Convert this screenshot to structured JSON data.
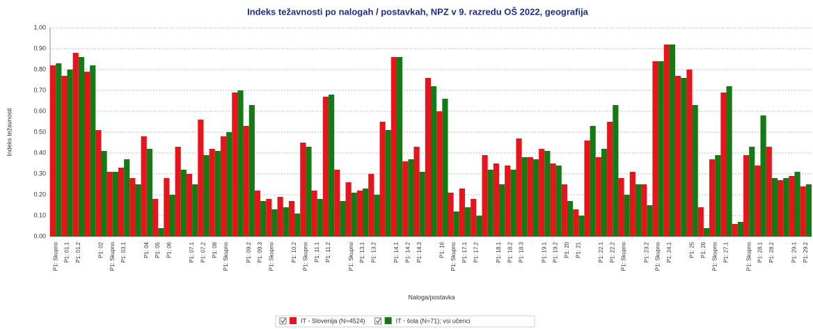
{
  "chart_data": {
    "type": "bar",
    "title": "Indeks težavnosti po nalogah / postavkah, NPZ v 9. razredu OŠ 2022, geografija",
    "x_label": "Naloga/postavka",
    "y_label": "Indeks težavnosti",
    "categories": [
      "P1: Skupno",
      "P1: 01.1",
      "P1: 01.2",
      null,
      "P1: 02",
      "P1: Skupno",
      "P1: 03.1",
      null,
      "P1: 04",
      "P1: 05",
      "P1: 06",
      null,
      "P1: 07.1",
      "P1: 07.2",
      "P1: 08",
      "P1: Skupno",
      null,
      "P1: 09.2",
      "P1: 09.3",
      "P1: Skupno",
      null,
      "P1: 10.2",
      "P1: Skupno",
      "P1: 11.1",
      "P1: 11.2",
      null,
      "P1: Skupno",
      "P1: 13.1",
      "P1: 13.2",
      null,
      "P1: 14.1",
      "P1: 14.2",
      "P1: 14.3",
      null,
      "P1: 16",
      "P1: Skupno",
      "P1: 17.1",
      "P1: 17.2",
      null,
      "P1: 18.1",
      "P1: 18.2",
      "P1: 18.3",
      null,
      "P1: 19.1",
      "P1: 19.2",
      "P1: 20",
      "P1: 21",
      null,
      "P1: 22.1",
      "P1: 22.2",
      "P1: Skupno",
      null,
      "P1: 23.2",
      "P1: Skupno",
      "P1: 24.1",
      null,
      "P1: 25",
      "P1: 26",
      "P1: Skupno",
      "P1: 27.1",
      null,
      "P1: Skupno",
      "P1: 28.1",
      "P1: 28.2",
      null,
      "P1: 29.1",
      "P1: 29.2"
    ],
    "series": [
      {
        "name": "IT - Slovenija (N=4524)",
        "color": "#e8141b",
        "values": [
          0.82,
          0.77,
          0.88,
          0.79,
          0.51,
          0.31,
          0.33,
          0.28,
          0.48,
          0.18,
          0.28,
          0.43,
          0.3,
          0.56,
          0.42,
          0.48,
          0.69,
          0.53,
          0.22,
          0.18,
          0.19,
          0.17,
          0.45,
          0.22,
          0.67,
          0.32,
          0.26,
          0.22,
          0.3,
          0.55,
          0.86,
          0.36,
          0.43,
          0.76,
          0.6,
          0.21,
          0.23,
          0.18,
          0.39,
          0.35,
          0.34,
          0.47,
          0.38,
          0.42,
          0.35,
          0.25,
          0.13,
          0.46,
          0.38,
          0.55,
          0.28,
          0.31,
          0.25,
          0.84,
          0.92,
          0.77,
          0.8,
          0.14,
          0.37,
          0.69,
          0.06,
          0.39,
          0.34,
          0.43,
          0.27,
          0.29,
          0.24
        ]
      },
      {
        "name": "IT - šola (N=71); vsi učenci",
        "color": "#137a14",
        "values": [
          0.83,
          0.8,
          0.86,
          0.82,
          0.41,
          0.31,
          0.37,
          0.25,
          0.42,
          0.04,
          0.2,
          0.32,
          0.25,
          0.39,
          0.41,
          0.5,
          0.7,
          0.63,
          0.17,
          0.13,
          0.14,
          0.11,
          0.43,
          0.18,
          0.68,
          0.17,
          0.21,
          0.23,
          0.2,
          0.51,
          0.86,
          0.37,
          0.31,
          0.72,
          0.66,
          0.12,
          0.14,
          0.1,
          0.32,
          0.25,
          0.32,
          0.38,
          0.37,
          0.41,
          0.34,
          0.17,
          0.1,
          0.53,
          0.42,
          0.63,
          0.2,
          0.25,
          0.15,
          0.84,
          0.92,
          0.76,
          0.63,
          0.04,
          0.39,
          0.72,
          0.07,
          0.43,
          0.58,
          0.28,
          0.28,
          0.31,
          0.25
        ]
      }
    ],
    "ylim": [
      0,
      1
    ],
    "yticks": [
      {
        "value": 0,
        "label": "0.00"
      },
      {
        "value": 0.1,
        "label": "0.10"
      },
      {
        "value": 0.2,
        "label": "0.20"
      },
      {
        "value": 0.3,
        "label": "0.30"
      },
      {
        "value": 0.4,
        "label": "0.40"
      },
      {
        "value": 0.5,
        "label": "0.50"
      },
      {
        "value": 0.6,
        "label": "0.60"
      },
      {
        "value": 0.7,
        "label": "0.70"
      },
      {
        "value": 0.8,
        "label": "0.80"
      },
      {
        "value": 0.9,
        "label": "0.90"
      },
      {
        "value": 1,
        "label": "1.00"
      }
    ],
    "grid": true,
    "legend": "bottom"
  }
}
